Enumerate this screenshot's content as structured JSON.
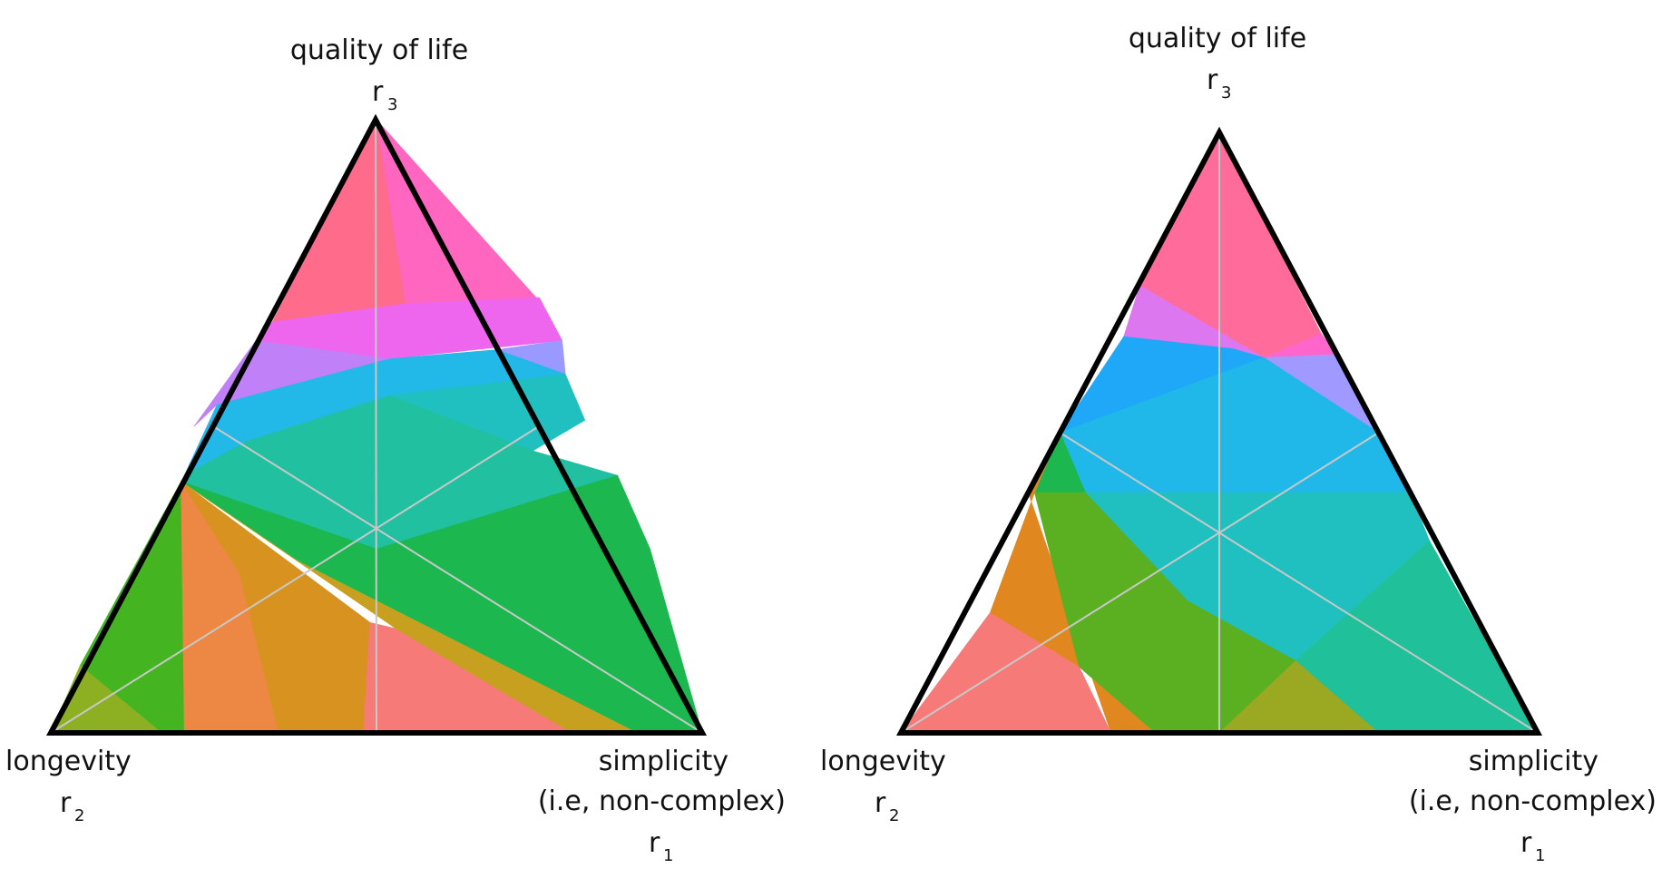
{
  "colors": {
    "outline": "#000000",
    "guide": "#c8c8c8",
    "text": "#111111"
  },
  "diagrams": [
    {
      "name": "left",
      "labels": {
        "top": {
          "title": "quality of life",
          "var": "r",
          "sub": "3"
        },
        "left": {
          "title": "longevity",
          "var": "r",
          "sub": "2"
        },
        "right": {
          "title_line1": "simplicity",
          "title_line2": "(i.e, non-complex)",
          "var": "r",
          "sub": "1"
        }
      },
      "regions": [
        {
          "color": "#ff6b8a",
          "pts": [
            [
              0.5,
              1.0
            ],
            [
              0.545,
              0.7
            ],
            [
              0.34,
              0.67
            ]
          ]
        },
        {
          "color": "#ff66c0",
          "pts": [
            [
              0.5,
              1.0
            ],
            [
              0.745,
              0.71
            ],
            [
              0.545,
              0.7
            ]
          ]
        },
        {
          "color": "#ee66ee",
          "pts": [
            [
              0.34,
              0.67
            ],
            [
              0.545,
              0.7
            ],
            [
              0.75,
              0.71
            ],
            [
              0.785,
              0.64
            ],
            [
              0.52,
              0.61
            ],
            [
              0.315,
              0.64
            ]
          ]
        },
        {
          "color": "#c080f8",
          "pts": [
            [
              0.315,
              0.64
            ],
            [
              0.52,
              0.61
            ],
            [
              0.42,
              0.575
            ],
            [
              0.255,
              0.535
            ],
            [
              0.22,
              0.5
            ]
          ]
        },
        {
          "color": "#9999ff",
          "pts": [
            [
              0.685,
              0.625
            ],
            [
              0.785,
              0.64
            ],
            [
              0.79,
              0.585
            ]
          ]
        },
        {
          "color": "#22b8e8",
          "pts": [
            [
              0.255,
              0.535
            ],
            [
              0.52,
              0.61
            ],
            [
              0.685,
              0.625
            ],
            [
              0.79,
              0.585
            ],
            [
              0.52,
              0.55
            ],
            [
              0.3,
              0.475
            ],
            [
              0.205,
              0.42
            ]
          ]
        },
        {
          "color": "#20c0c0",
          "pts": [
            [
              0.52,
              0.55
            ],
            [
              0.79,
              0.585
            ],
            [
              0.82,
              0.51
            ],
            [
              0.74,
              0.46
            ]
          ]
        },
        {
          "color": "#20c0a0",
          "pts": [
            [
              0.205,
              0.42
            ],
            [
              0.3,
              0.475
            ],
            [
              0.52,
              0.55
            ],
            [
              0.74,
              0.46
            ],
            [
              0.87,
              0.42
            ],
            [
              0.5,
              0.3
            ],
            [
              0.2,
              0.41
            ]
          ]
        },
        {
          "color": "#1cb84f",
          "pts": [
            [
              0.2,
              0.41
            ],
            [
              0.5,
              0.3
            ],
            [
              0.87,
              0.42
            ],
            [
              0.92,
              0.3
            ],
            [
              1.0,
              0.0
            ],
            [
              0.9,
              0.0
            ],
            [
              0.38,
              0.28
            ]
          ]
        },
        {
          "color": "#44b520",
          "pts": [
            [
              0.045,
              0.11
            ],
            [
              0.2,
              0.41
            ],
            [
              0.205,
              0.0
            ],
            [
              0.17,
              0.0
            ]
          ]
        },
        {
          "color": "#8cb022",
          "pts": [
            [
              0.0,
              0.0
            ],
            [
              0.045,
              0.11
            ],
            [
              0.17,
              0.0
            ]
          ]
        },
        {
          "color": "#ec8844",
          "pts": [
            [
              0.2,
              0.41
            ],
            [
              0.205,
              0.0
            ],
            [
              0.35,
              0.0
            ],
            [
              0.29,
              0.26
            ]
          ]
        },
        {
          "color": "#d8921f",
          "pts": [
            [
              0.2,
              0.41
            ],
            [
              0.29,
              0.26
            ],
            [
              0.35,
              0.0
            ],
            [
              0.48,
              0.0
            ],
            [
              0.49,
              0.18
            ]
          ]
        },
        {
          "color": "#f57a78",
          "pts": [
            [
              0.48,
              0.0
            ],
            [
              0.49,
              0.18
            ],
            [
              0.53,
              0.17
            ],
            [
              0.8,
              0.0
            ]
          ]
        },
        {
          "color": "#c8a020",
          "pts": [
            [
              0.2,
              0.41
            ],
            [
              0.38,
              0.28
            ],
            [
              0.9,
              0.0
            ],
            [
              0.8,
              0.0
            ],
            [
              0.53,
              0.17
            ]
          ]
        }
      ]
    },
    {
      "name": "right",
      "labels": {
        "top": {
          "title": "quality of life",
          "var": "r",
          "sub": "3"
        },
        "left": {
          "title": "longevity",
          "var": "r",
          "sub": "2"
        },
        "right": {
          "title_line1": "simplicity",
          "title_line2": "(i.e, non-complex)",
          "var": "r",
          "sub": "1"
        }
      },
      "regions": [
        {
          "color": "#ff6b9a",
          "pts": [
            [
              0.5,
              1.0
            ],
            [
              0.375,
              0.745
            ],
            [
              0.57,
              0.625
            ],
            [
              0.66,
              0.665
            ]
          ]
        },
        {
          "color": "#ff66cc",
          "pts": [
            [
              0.57,
              0.625
            ],
            [
              0.66,
              0.665
            ],
            [
              0.685,
              0.63
            ]
          ]
        },
        {
          "color": "#dd77f0",
          "pts": [
            [
              0.375,
              0.745
            ],
            [
              0.57,
              0.625
            ],
            [
              0.52,
              0.64
            ],
            [
              0.35,
              0.66
            ]
          ]
        },
        {
          "color": "#a099ff",
          "pts": [
            [
              0.57,
              0.625
            ],
            [
              0.685,
              0.63
            ],
            [
              0.75,
              0.5
            ]
          ]
        },
        {
          "color": "#20a8f8",
          "pts": [
            [
              0.35,
              0.66
            ],
            [
              0.52,
              0.64
            ],
            [
              0.57,
              0.625
            ],
            [
              0.25,
              0.5
            ]
          ]
        },
        {
          "color": "#20b8e8",
          "pts": [
            [
              0.25,
              0.5
            ],
            [
              0.57,
              0.625
            ],
            [
              0.75,
              0.5
            ],
            [
              0.8,
              0.4
            ],
            [
              0.2,
              0.4
            ]
          ]
        },
        {
          "color": "#c4a024",
          "pts": [
            [
              0.25,
              0.5
            ],
            [
              0.2,
              0.4
            ],
            [
              0.21,
              0.4
            ]
          ]
        },
        {
          "color": "#1cb84f",
          "pts": [
            [
              0.25,
              0.5
            ],
            [
              0.21,
              0.4
            ],
            [
              0.29,
              0.4
            ]
          ]
        },
        {
          "color": "#20c0c0",
          "pts": [
            [
              0.29,
              0.4
            ],
            [
              0.8,
              0.4
            ],
            [
              0.83,
              0.32
            ],
            [
              0.62,
              0.12
            ],
            [
              0.45,
              0.22
            ]
          ]
        },
        {
          "color": "#20c09a",
          "pts": [
            [
              0.62,
              0.12
            ],
            [
              0.83,
              0.32
            ],
            [
              1.0,
              0.0
            ],
            [
              0.75,
              0.0
            ]
          ]
        },
        {
          "color": "#e0881f",
          "pts": [
            [
              0.2,
              0.4
            ],
            [
              0.25,
              0.5
            ],
            [
              0.21,
              0.4
            ],
            [
              0.14,
              0.2
            ],
            [
              0.28,
              0.11
            ],
            [
              0.4,
              0.0
            ],
            [
              0.33,
              0.0
            ]
          ]
        },
        {
          "color": "#5ab020",
          "pts": [
            [
              0.21,
              0.4
            ],
            [
              0.29,
              0.4
            ],
            [
              0.45,
              0.22
            ],
            [
              0.62,
              0.12
            ],
            [
              0.5,
              0.0
            ],
            [
              0.4,
              0.0
            ],
            [
              0.28,
              0.11
            ]
          ]
        },
        {
          "color": "#9aa822",
          "pts": [
            [
              0.5,
              0.0
            ],
            [
              0.62,
              0.12
            ],
            [
              0.75,
              0.0
            ]
          ]
        },
        {
          "color": "#f57a78",
          "pts": [
            [
              0.0,
              0.0
            ],
            [
              0.14,
              0.2
            ],
            [
              0.28,
              0.11
            ],
            [
              0.33,
              0.0
            ]
          ]
        }
      ]
    }
  ]
}
